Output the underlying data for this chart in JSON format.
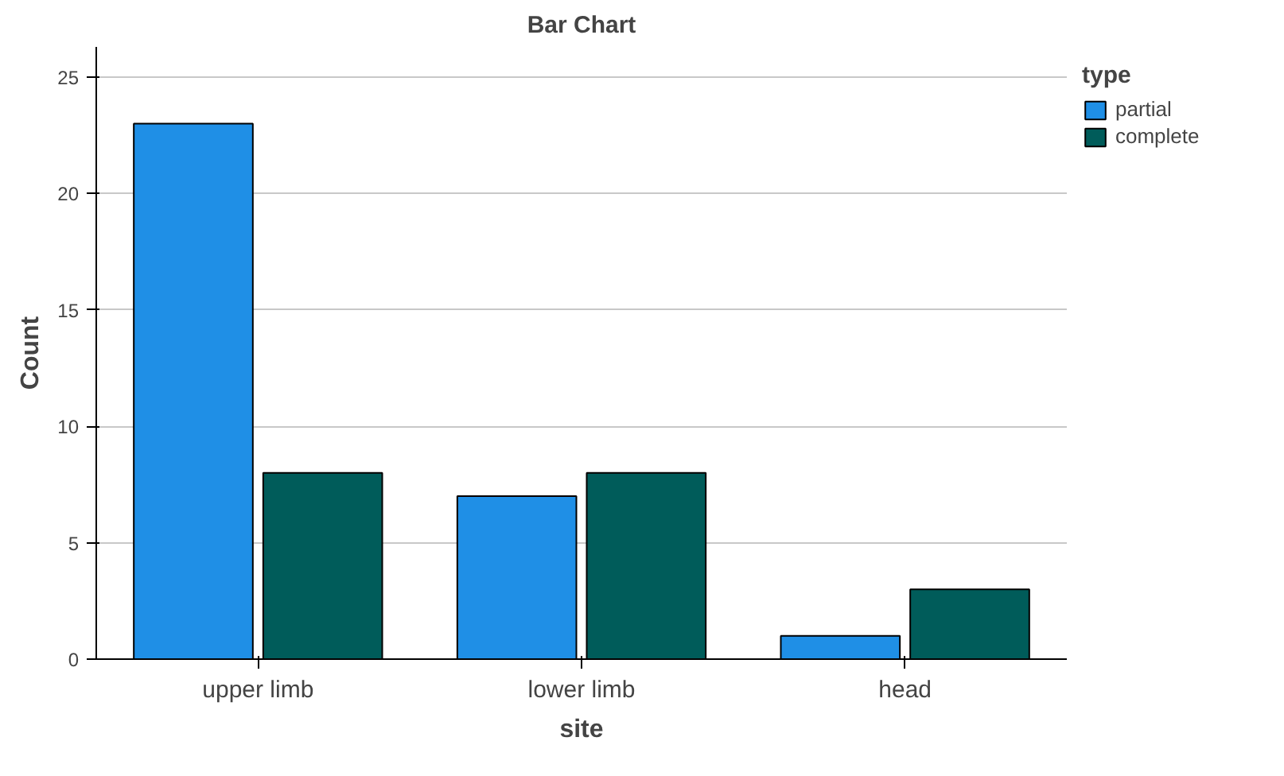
{
  "chart_data": {
    "type": "bar",
    "title": "Bar Chart",
    "xlabel": "site",
    "ylabel": "Count",
    "legend_title": "type",
    "categories": [
      "upper limb",
      "lower limb",
      "head"
    ],
    "series": [
      {
        "name": "partial",
        "color": "#1f8fe6",
        "values": [
          23,
          7,
          1
        ]
      },
      {
        "name": "complete",
        "color": "#005c5a",
        "values": [
          8,
          8,
          3
        ]
      }
    ],
    "ylim": [
      0,
      26.3
    ],
    "yticks": [
      0,
      5,
      10,
      15,
      20,
      25
    ],
    "grid": "y",
    "legend": "top right"
  }
}
